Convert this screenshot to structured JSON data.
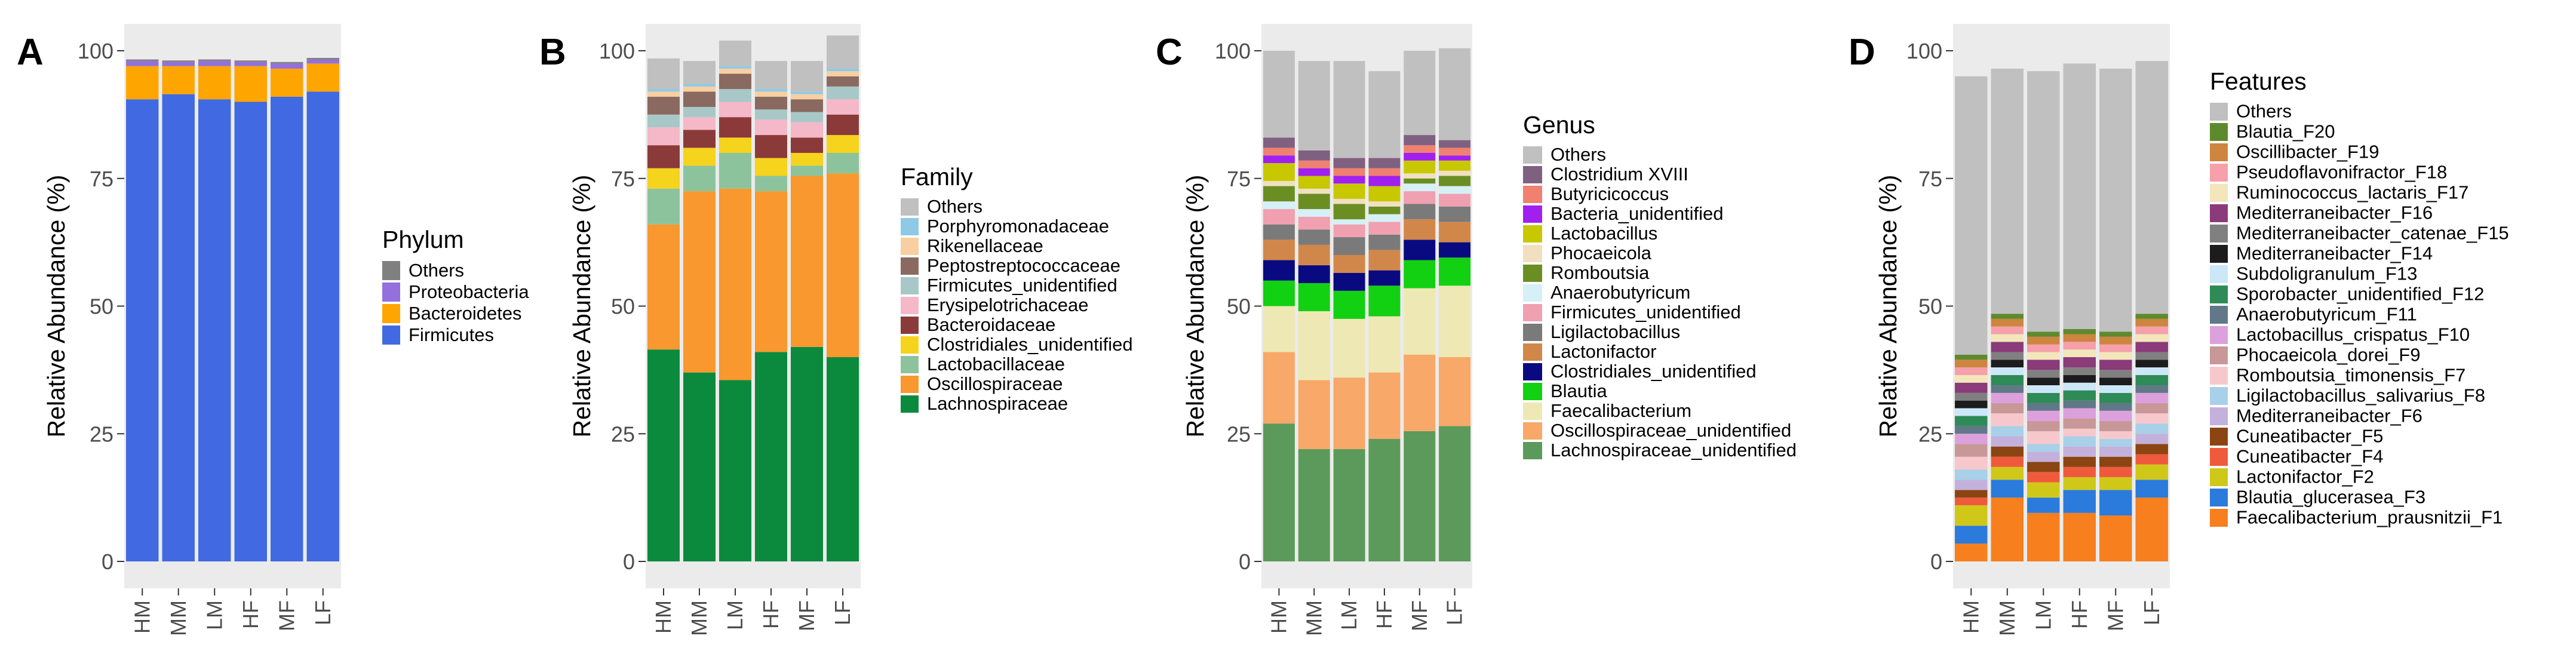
{
  "chart_data": [
    {
      "type": "bar",
      "stacked": true,
      "panel_label": "A",
      "categories": [
        "HM",
        "MM",
        "LM",
        "HF",
        "MF",
        "LF"
      ],
      "ylabel": "Relative Abundance (%)",
      "xlabel": "",
      "ylim": [
        0,
        100
      ],
      "yticks": [
        0,
        25,
        50,
        75,
        100
      ],
      "grid": false,
      "legend_title": "Phylum",
      "legend_position": "right",
      "series": [
        {
          "name": "Firmicutes",
          "color": "#4169e1",
          "values": [
            90.5,
            91.5,
            90.5,
            90.0,
            91.0,
            92.0
          ]
        },
        {
          "name": "Bacteroidetes",
          "color": "#ffa500",
          "values": [
            6.5,
            5.5,
            6.5,
            7.0,
            5.5,
            5.5
          ]
        },
        {
          "name": "Proteobacteria",
          "color": "#9370db",
          "values": [
            1.0,
            0.8,
            1.0,
            0.8,
            1.0,
            0.8
          ]
        },
        {
          "name": "Others",
          "color": "#808080",
          "values": [
            0.3,
            0.3,
            0.3,
            0.3,
            0.3,
            0.3
          ]
        }
      ]
    },
    {
      "type": "bar",
      "stacked": true,
      "panel_label": "B",
      "categories": [
        "HM",
        "MM",
        "LM",
        "HF",
        "MF",
        "LF"
      ],
      "ylabel": "Relative Abundance (%)",
      "xlabel": "",
      "ylim": [
        0,
        100
      ],
      "yticks": [
        0,
        25,
        50,
        75,
        100
      ],
      "grid": false,
      "legend_title": "Family",
      "legend_position": "right",
      "series": [
        {
          "name": "Lachnospiraceae",
          "color": "#0b8a3e",
          "values": [
            41.5,
            37.0,
            35.5,
            41.0,
            42.0,
            40.0
          ]
        },
        {
          "name": "Oscillospiraceae",
          "color": "#f8982e",
          "values": [
            24.5,
            35.5,
            37.5,
            31.5,
            33.5,
            36.0
          ]
        },
        {
          "name": "Lactobacillaceae",
          "color": "#8dc39c",
          "values": [
            7.0,
            5.0,
            7.0,
            3.0,
            2.0,
            4.0
          ]
        },
        {
          "name": "Clostridiales_unidentified",
          "color": "#f6d31c",
          "values": [
            4.0,
            3.5,
            3.0,
            3.5,
            2.5,
            3.5
          ]
        },
        {
          "name": "Bacteroidaceae",
          "color": "#8b3a3a",
          "values": [
            4.5,
            3.5,
            4.0,
            4.5,
            3.0,
            4.0
          ]
        },
        {
          "name": "Erysipelotrichaceae",
          "color": "#f4b8c8",
          "values": [
            3.5,
            2.5,
            3.0,
            3.0,
            3.0,
            3.0
          ]
        },
        {
          "name": "Firmicutes_unidentified",
          "color": "#a8c8c8",
          "values": [
            2.5,
            2.0,
            2.5,
            2.0,
            2.0,
            2.5
          ]
        },
        {
          "name": "Peptostreptococcaceae",
          "color": "#8a6a60",
          "values": [
            3.5,
            3.0,
            3.0,
            2.5,
            2.5,
            2.0
          ]
        },
        {
          "name": "Rikenellaceae",
          "color": "#f8cfa0",
          "values": [
            1.0,
            1.0,
            1.0,
            1.0,
            1.0,
            1.0
          ]
        },
        {
          "name": "Porphyromonadaceae",
          "color": "#8ecae6",
          "values": [
            0.5,
            0.5,
            0.5,
            0.5,
            0.5,
            0.5
          ]
        },
        {
          "name": "Others",
          "color": "#c0c0c0",
          "values": [
            6.0,
            4.5,
            5.0,
            5.5,
            6.0,
            6.5
          ]
        }
      ]
    },
    {
      "type": "bar",
      "stacked": true,
      "panel_label": "C",
      "categories": [
        "HM",
        "MM",
        "LM",
        "HF",
        "MF",
        "LF"
      ],
      "ylabel": "Relative Abundance (%)",
      "xlabel": "",
      "ylim": [
        0,
        100
      ],
      "yticks": [
        0,
        25,
        50,
        75,
        100
      ],
      "grid": false,
      "legend_title": "Genus",
      "legend_position": "right",
      "series": [
        {
          "name": "Lachnospiraceae_unidentified",
          "color": "#5b9a5b",
          "values": [
            27.0,
            22.0,
            22.0,
            24.0,
            25.5,
            26.5
          ]
        },
        {
          "name": "Oscillospiraceae_unidentified",
          "color": "#f8a868",
          "values": [
            14.0,
            13.5,
            14.0,
            13.0,
            15.0,
            13.5
          ]
        },
        {
          "name": "Faecalibacterium",
          "color": "#eee8b4",
          "values": [
            9.0,
            13.5,
            11.5,
            11.0,
            13.0,
            14.0
          ]
        },
        {
          "name": "Blautia",
          "color": "#12d012",
          "values": [
            5.0,
            5.5,
            5.5,
            6.0,
            5.5,
            5.5
          ]
        },
        {
          "name": "Clostridiales_unidentified",
          "color": "#0a0a80",
          "values": [
            4.0,
            3.5,
            3.5,
            3.0,
            4.0,
            3.0
          ]
        },
        {
          "name": "Lactonifactor",
          "color": "#d2874a",
          "values": [
            4.0,
            4.0,
            3.5,
            4.0,
            4.0,
            4.0
          ]
        },
        {
          "name": "Ligilactobacillus",
          "color": "#7a7a7a",
          "values": [
            3.0,
            3.0,
            3.5,
            3.0,
            3.0,
            3.0
          ]
        },
        {
          "name": "Firmicutes_unidentified",
          "color": "#f0a0b0",
          "values": [
            3.0,
            2.5,
            2.5,
            2.5,
            2.5,
            2.5
          ]
        },
        {
          "name": "Anaerobutyricum",
          "color": "#d6f0f8",
          "values": [
            1.5,
            1.5,
            1.0,
            1.5,
            1.5,
            1.5
          ]
        },
        {
          "name": "Romboutsia",
          "color": "#6b8e23",
          "values": [
            3.0,
            3.0,
            3.0,
            1.5,
            1.0,
            2.0
          ]
        },
        {
          "name": "Phocaeicola",
          "color": "#f0e0c0",
          "values": [
            1.0,
            1.0,
            1.0,
            1.0,
            1.0,
            1.0
          ]
        },
        {
          "name": "Lactobacillus",
          "color": "#c8c800",
          "values": [
            3.5,
            2.5,
            3.0,
            3.0,
            2.5,
            2.0
          ]
        },
        {
          "name": "Bacteria_unidentified",
          "color": "#a020f0",
          "values": [
            1.5,
            1.5,
            1.5,
            2.0,
            1.5,
            1.0
          ]
        },
        {
          "name": "Butyricicoccus",
          "color": "#f08070",
          "values": [
            1.5,
            1.5,
            1.5,
            1.5,
            1.5,
            1.5
          ]
        },
        {
          "name": "Clostridium XVIII",
          "color": "#806080",
          "values": [
            2.0,
            2.0,
            2.0,
            2.0,
            2.0,
            1.5
          ]
        },
        {
          "name": "Others",
          "color": "#c0c0c0",
          "values": [
            17.0,
            17.5,
            19.0,
            17.0,
            16.5,
            18.0
          ]
        }
      ]
    },
    {
      "type": "bar",
      "stacked": true,
      "panel_label": "D",
      "categories": [
        "HM",
        "MM",
        "LM",
        "HF",
        "MF",
        "LF"
      ],
      "ylabel": "Relative Abundance (%)",
      "xlabel": "",
      "ylim": [
        0,
        100
      ],
      "yticks": [
        0,
        25,
        50,
        75,
        100
      ],
      "grid": false,
      "legend_title": "Features",
      "legend_position": "right",
      "series": [
        {
          "name": "Faecalibacterium_prausnitzii_F1",
          "color": "#f77f1e",
          "values": [
            3.5,
            12.5,
            9.5,
            9.5,
            9.0,
            12.5
          ]
        },
        {
          "name": "Blautia_glucerasea_F3",
          "color": "#2b7bdc",
          "values": [
            3.5,
            3.5,
            3.0,
            4.5,
            5.0,
            3.5
          ]
        },
        {
          "name": "Lactonifactor_F2",
          "color": "#d0c818",
          "values": [
            4.0,
            2.5,
            3.0,
            2.5,
            2.5,
            3.0
          ]
        },
        {
          "name": "Cuneatibacter_F4",
          "color": "#f05a3c",
          "values": [
            1.5,
            2.0,
            2.0,
            2.0,
            2.0,
            2.0
          ]
        },
        {
          "name": "Cuneatibacter_F5",
          "color": "#8b4513",
          "values": [
            1.5,
            2.0,
            2.0,
            2.0,
            2.0,
            2.0
          ]
        },
        {
          "name": "Mediterraneibacter_F6",
          "color": "#c3b1dc",
          "values": [
            2.0,
            2.0,
            2.0,
            2.0,
            2.0,
            2.0
          ]
        },
        {
          "name": "Ligilactobacillus_salivarius_F8",
          "color": "#a8d0e8",
          "values": [
            2.0,
            2.0,
            1.5,
            2.0,
            1.5,
            2.0
          ]
        },
        {
          "name": "Romboutsia_timonensis_F7",
          "color": "#f6c8cc",
          "values": [
            2.5,
            2.5,
            2.5,
            1.5,
            1.5,
            2.0
          ]
        },
        {
          "name": "Phocaeicola_dorei_F9",
          "color": "#c89898",
          "values": [
            2.5,
            2.0,
            2.0,
            2.0,
            2.0,
            2.0
          ]
        },
        {
          "name": "Lactobacillus_crispatus_F10",
          "color": "#dca0dc",
          "values": [
            2.0,
            2.0,
            2.0,
            2.0,
            2.0,
            2.0
          ]
        },
        {
          "name": "Anaerobutyricum_F11",
          "color": "#607888",
          "values": [
            1.5,
            1.5,
            1.5,
            1.5,
            1.5,
            1.5
          ]
        },
        {
          "name": "Sporobacter_unidentified_F12",
          "color": "#2e8b57",
          "values": [
            2.0,
            2.0,
            2.0,
            2.0,
            2.0,
            2.0
          ]
        },
        {
          "name": "Subdoligranulum_F13",
          "color": "#cce8f8",
          "values": [
            1.5,
            1.5,
            1.5,
            1.5,
            1.5,
            1.5
          ]
        },
        {
          "name": "Mediterraneibacter_F14",
          "color": "#1c1c1c",
          "values": [
            1.5,
            1.5,
            1.5,
            1.5,
            1.5,
            1.5
          ]
        },
        {
          "name": "Mediterraneibacter_catenae_F15",
          "color": "#808080",
          "values": [
            1.5,
            1.5,
            1.5,
            1.5,
            1.5,
            1.5
          ]
        },
        {
          "name": "Mediterraneibacter_F16",
          "color": "#8b3a7a",
          "values": [
            2.0,
            2.0,
            2.0,
            2.0,
            2.0,
            2.0
          ]
        },
        {
          "name": "Ruminococcus_lactaris_F17",
          "color": "#f3e6bb",
          "values": [
            1.5,
            1.5,
            1.5,
            1.5,
            1.5,
            1.5
          ]
        },
        {
          "name": "Pseudoflavonifractor_F18",
          "color": "#f5a0aa",
          "values": [
            1.5,
            1.5,
            1.5,
            1.5,
            1.5,
            1.5
          ]
        },
        {
          "name": "Oscillibacter_F19",
          "color": "#cd853f",
          "values": [
            1.5,
            1.5,
            1.5,
            1.5,
            1.5,
            1.5
          ]
        },
        {
          "name": "Blautia_F20",
          "color": "#5e8a2e",
          "values": [
            1.0,
            1.0,
            1.0,
            1.0,
            1.0,
            1.0
          ]
        },
        {
          "name": "Others",
          "color": "#c0c0c0",
          "values": [
            54.5,
            48.0,
            51.0,
            52.0,
            51.5,
            49.5
          ]
        }
      ]
    }
  ]
}
